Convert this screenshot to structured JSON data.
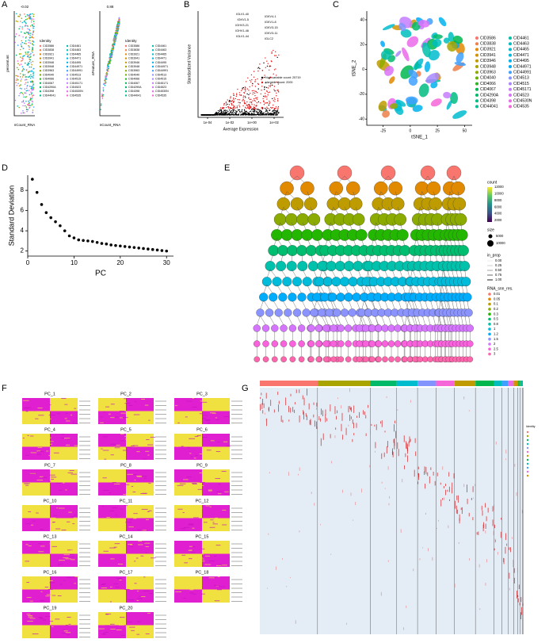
{
  "panel_letters": [
    "A",
    "B",
    "C",
    "D",
    "E",
    "F",
    "G"
  ],
  "identities": {
    "names": [
      "CID3586",
      "CID3838",
      "CID3921",
      "CID3941",
      "CID3946",
      "CID3948",
      "CID3963",
      "CID4040",
      "CID4066",
      "CID4067",
      "CID4290A",
      "CID4398",
      "CID44041",
      "CID4461",
      "CID4463",
      "CID4465",
      "CID4471",
      "CID4495",
      "CID44971",
      "CID44991",
      "CID4513",
      "CID4515",
      "CID45171",
      "CID4523",
      "CID4530N",
      "CID4535"
    ],
    "colors": [
      "#F8766D",
      "#EF7F49",
      "#E38900",
      "#D39200",
      "#C09B00",
      "#A9A400",
      "#8EAB00",
      "#6BB100",
      "#31B425",
      "#00B74F",
      "#00BA6A",
      "#00BC81",
      "#00BE96",
      "#00BFAA",
      "#00BEBD",
      "#00BCCF",
      "#00B8E0",
      "#00B2EE",
      "#00AAFA",
      "#3FA0FF",
      "#8494FF",
      "#A987FF",
      "#C57CFF",
      "#DA71F8",
      "#EA6AEA",
      "#F566D8"
    ]
  },
  "panel_a": {
    "legend_title": "Identity",
    "plots": [
      {
        "title": "-0.02",
        "xlabel": "nCount_RNA",
        "ylabel": "percent.mt"
      },
      {
        "title": "0.88",
        "xlabel": "nCount_RNA",
        "ylabel": "nFeature_RNA"
      }
    ]
  },
  "panel_b": {
    "xlabel": "Average Expression",
    "ylabel": "Standardized Variance",
    "xticks": [
      "1e-04",
      "1e-02",
      "1e+00",
      "1e+02"
    ],
    "legend": [
      "Non-variable count: 25719",
      "Variable count: 2000"
    ],
    "colors": [
      "#000000",
      "#e41a1c"
    ],
    "gene_labels": [
      "IGLV1-40",
      "IGKV4-1",
      "IGKV1-5",
      "IGKV1-8",
      "IGHV3-21",
      "IGKV3-15",
      "IGHV1-46",
      "IGKV3-11",
      "IGLV1-44",
      "IGLC2"
    ]
  },
  "panel_c": {
    "xlabel": "tSNE_1",
    "ylabel": "tSNE_2",
    "xlim": [
      -40,
      57
    ],
    "ylim": [
      -45,
      47
    ],
    "xticks": [
      -25,
      0,
      25,
      50
    ],
    "yticks": [
      -40,
      -20,
      0,
      20,
      40
    ]
  },
  "chart_data": {
    "type": "scatter",
    "xlabel": "PC",
    "ylabel": "Standard Deviation",
    "x": [
      1,
      2,
      3,
      4,
      5,
      6,
      7,
      8,
      9,
      10,
      11,
      12,
      13,
      14,
      15,
      16,
      17,
      18,
      19,
      20,
      21,
      22,
      23,
      24,
      25,
      26,
      27,
      28,
      29,
      30
    ],
    "values": [
      9.1,
      7.8,
      6.6,
      5.8,
      5.3,
      4.9,
      4.5,
      4.0,
      3.5,
      3.3,
      3.1,
      3.05,
      3.0,
      2.95,
      2.85,
      2.75,
      2.7,
      2.6,
      2.55,
      2.5,
      2.45,
      2.4,
      2.35,
      2.3,
      2.25,
      2.2,
      2.15,
      2.1,
      2.05,
      2.0
    ],
    "xlim": [
      0,
      31.5
    ],
    "ylim": [
      1.5,
      9.5
    ],
    "xticks": [
      0,
      10,
      20,
      30
    ],
    "yticks": [
      2,
      4,
      6,
      8
    ],
    "color": "#000000"
  },
  "panel_e": {
    "count_title": "count",
    "count_ticks": [
      2000,
      4000,
      6000,
      8000,
      10000,
      12000
    ],
    "size_title": "size",
    "size_ticks": [
      5000,
      10000
    ],
    "in_prop_title": "in_prop",
    "in_prop_ticks": [
      "0.00",
      "0.25",
      "0.50",
      "0.75",
      "1.00"
    ],
    "res_title": "RNA_snn_res.",
    "res_values": [
      "0.01",
      "0.05",
      "0.1",
      "0.2",
      "0.3",
      "0.5",
      "0.8",
      "1",
      "1.2",
      "1.5",
      "2",
      "2.5",
      "3"
    ],
    "res_colors": [
      "#F8766D",
      "#E18A00",
      "#BE9C00",
      "#8CAB00",
      "#24B700",
      "#00BE70",
      "#00C1AB",
      "#00BBDA",
      "#00ACFC",
      "#8B93FF",
      "#D575FE",
      "#F962DD",
      "#FF65AC"
    ]
  },
  "panel_f": {
    "titles": [
      "PC_1",
      "PC_2",
      "PC_3",
      "PC_4",
      "PC_5",
      "PC_6",
      "PC_7",
      "PC_8",
      "PC_9",
      "PC_10",
      "PC_11",
      "PC_12",
      "PC_13",
      "PC_14",
      "PC_15",
      "PC_16",
      "PC_17",
      "PC_18",
      "PC_19",
      "PC_20"
    ]
  },
  "panel_g": {
    "legend_title": "Identity"
  }
}
